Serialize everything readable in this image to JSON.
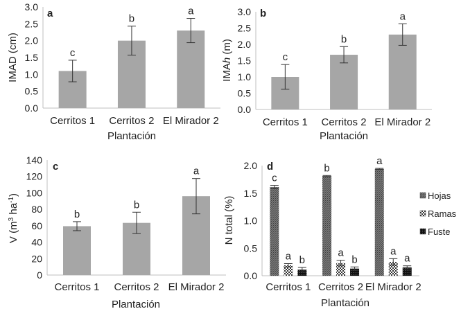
{
  "chart_data": [
    {
      "panel": "a",
      "type": "bar",
      "ylabel": "IMAD (cm)",
      "xlabel": "",
      "categories": [
        "Cerritos 1",
        "Cerritos 2",
        "El Mirador 2"
      ],
      "values": [
        1.1,
        2.0,
        2.3
      ],
      "errors": [
        0.32,
        0.43,
        0.36
      ],
      "significance": [
        "c",
        "b",
        "a"
      ],
      "ylim": [
        0.0,
        3.0
      ],
      "yticks": [
        "0.0",
        "0.5",
        "1.0",
        "1.5",
        "2.0",
        "2.5",
        "3.0"
      ],
      "bar_color": "#a6a6a6"
    },
    {
      "panel": "b",
      "type": "bar",
      "ylabel_main": "IMA",
      "ylabel_italic": "h",
      "ylabel_unit": " (m)",
      "xlabel": "Plantación",
      "categories": [
        "Cerritos 1",
        "Cerritos 2",
        "El Mirador 2"
      ],
      "values": [
        1.0,
        1.68,
        2.3
      ],
      "errors": [
        0.38,
        0.25,
        0.33
      ],
      "significance": [
        "c",
        "b",
        "a"
      ],
      "ylim": [
        0.0,
        3.0
      ],
      "yticks": [
        "0.0",
        "0.5",
        "1.0",
        "1.5",
        "2.0",
        "2.5",
        "3.0"
      ],
      "bar_color": "#a6a6a6"
    },
    {
      "panel": "c",
      "type": "bar",
      "ylabel_main": "V (m",
      "ylabel_sup1": "3",
      "ylabel_mid": " ha",
      "ylabel_sup2": "-1",
      "ylabel_end": ")",
      "xlabel": "Plantación",
      "categories": [
        "Cerritos 1",
        "Cerritos 2",
        "El Mirador 2"
      ],
      "values": [
        59.5,
        63.5,
        96.0
      ],
      "errors": [
        5.5,
        13.0,
        21.5
      ],
      "significance": [
        "b",
        "b",
        "a"
      ],
      "ylim": [
        0,
        140
      ],
      "yticks": [
        "0",
        "20",
        "40",
        "60",
        "80",
        "100",
        "120",
        "140"
      ],
      "bar_color": "#a6a6a6"
    },
    {
      "panel": "d",
      "type": "bar",
      "ylabel": "N total (%)",
      "xlabel": "Plantación",
      "categories": [
        "Cerritos 1",
        "Cerritos 2",
        "El Mirador 2"
      ],
      "series": [
        {
          "name": "Hojas",
          "values": [
            1.61,
            1.81,
            1.94
          ],
          "errors": [
            0.03,
            0.01,
            0.01
          ],
          "significance": [
            "c",
            "b",
            "a"
          ]
        },
        {
          "name": "Ramas",
          "values": [
            0.19,
            0.23,
            0.25
          ],
          "errors": [
            0.03,
            0.05,
            0.06
          ],
          "significance": [
            "a",
            "a",
            "a"
          ]
        },
        {
          "name": "Fuste",
          "values": [
            0.11,
            0.13,
            0.15
          ],
          "errors": [
            0.04,
            0.03,
            0.03
          ],
          "significance": [
            "b",
            "b",
            "a"
          ]
        }
      ],
      "ylim": [
        0.0,
        2.0
      ],
      "yticks": [
        "0.0",
        "0.5",
        "1.0",
        "1.5",
        "2.0"
      ],
      "legend_position": "right"
    }
  ],
  "plantacion_label_a": "Plantación"
}
